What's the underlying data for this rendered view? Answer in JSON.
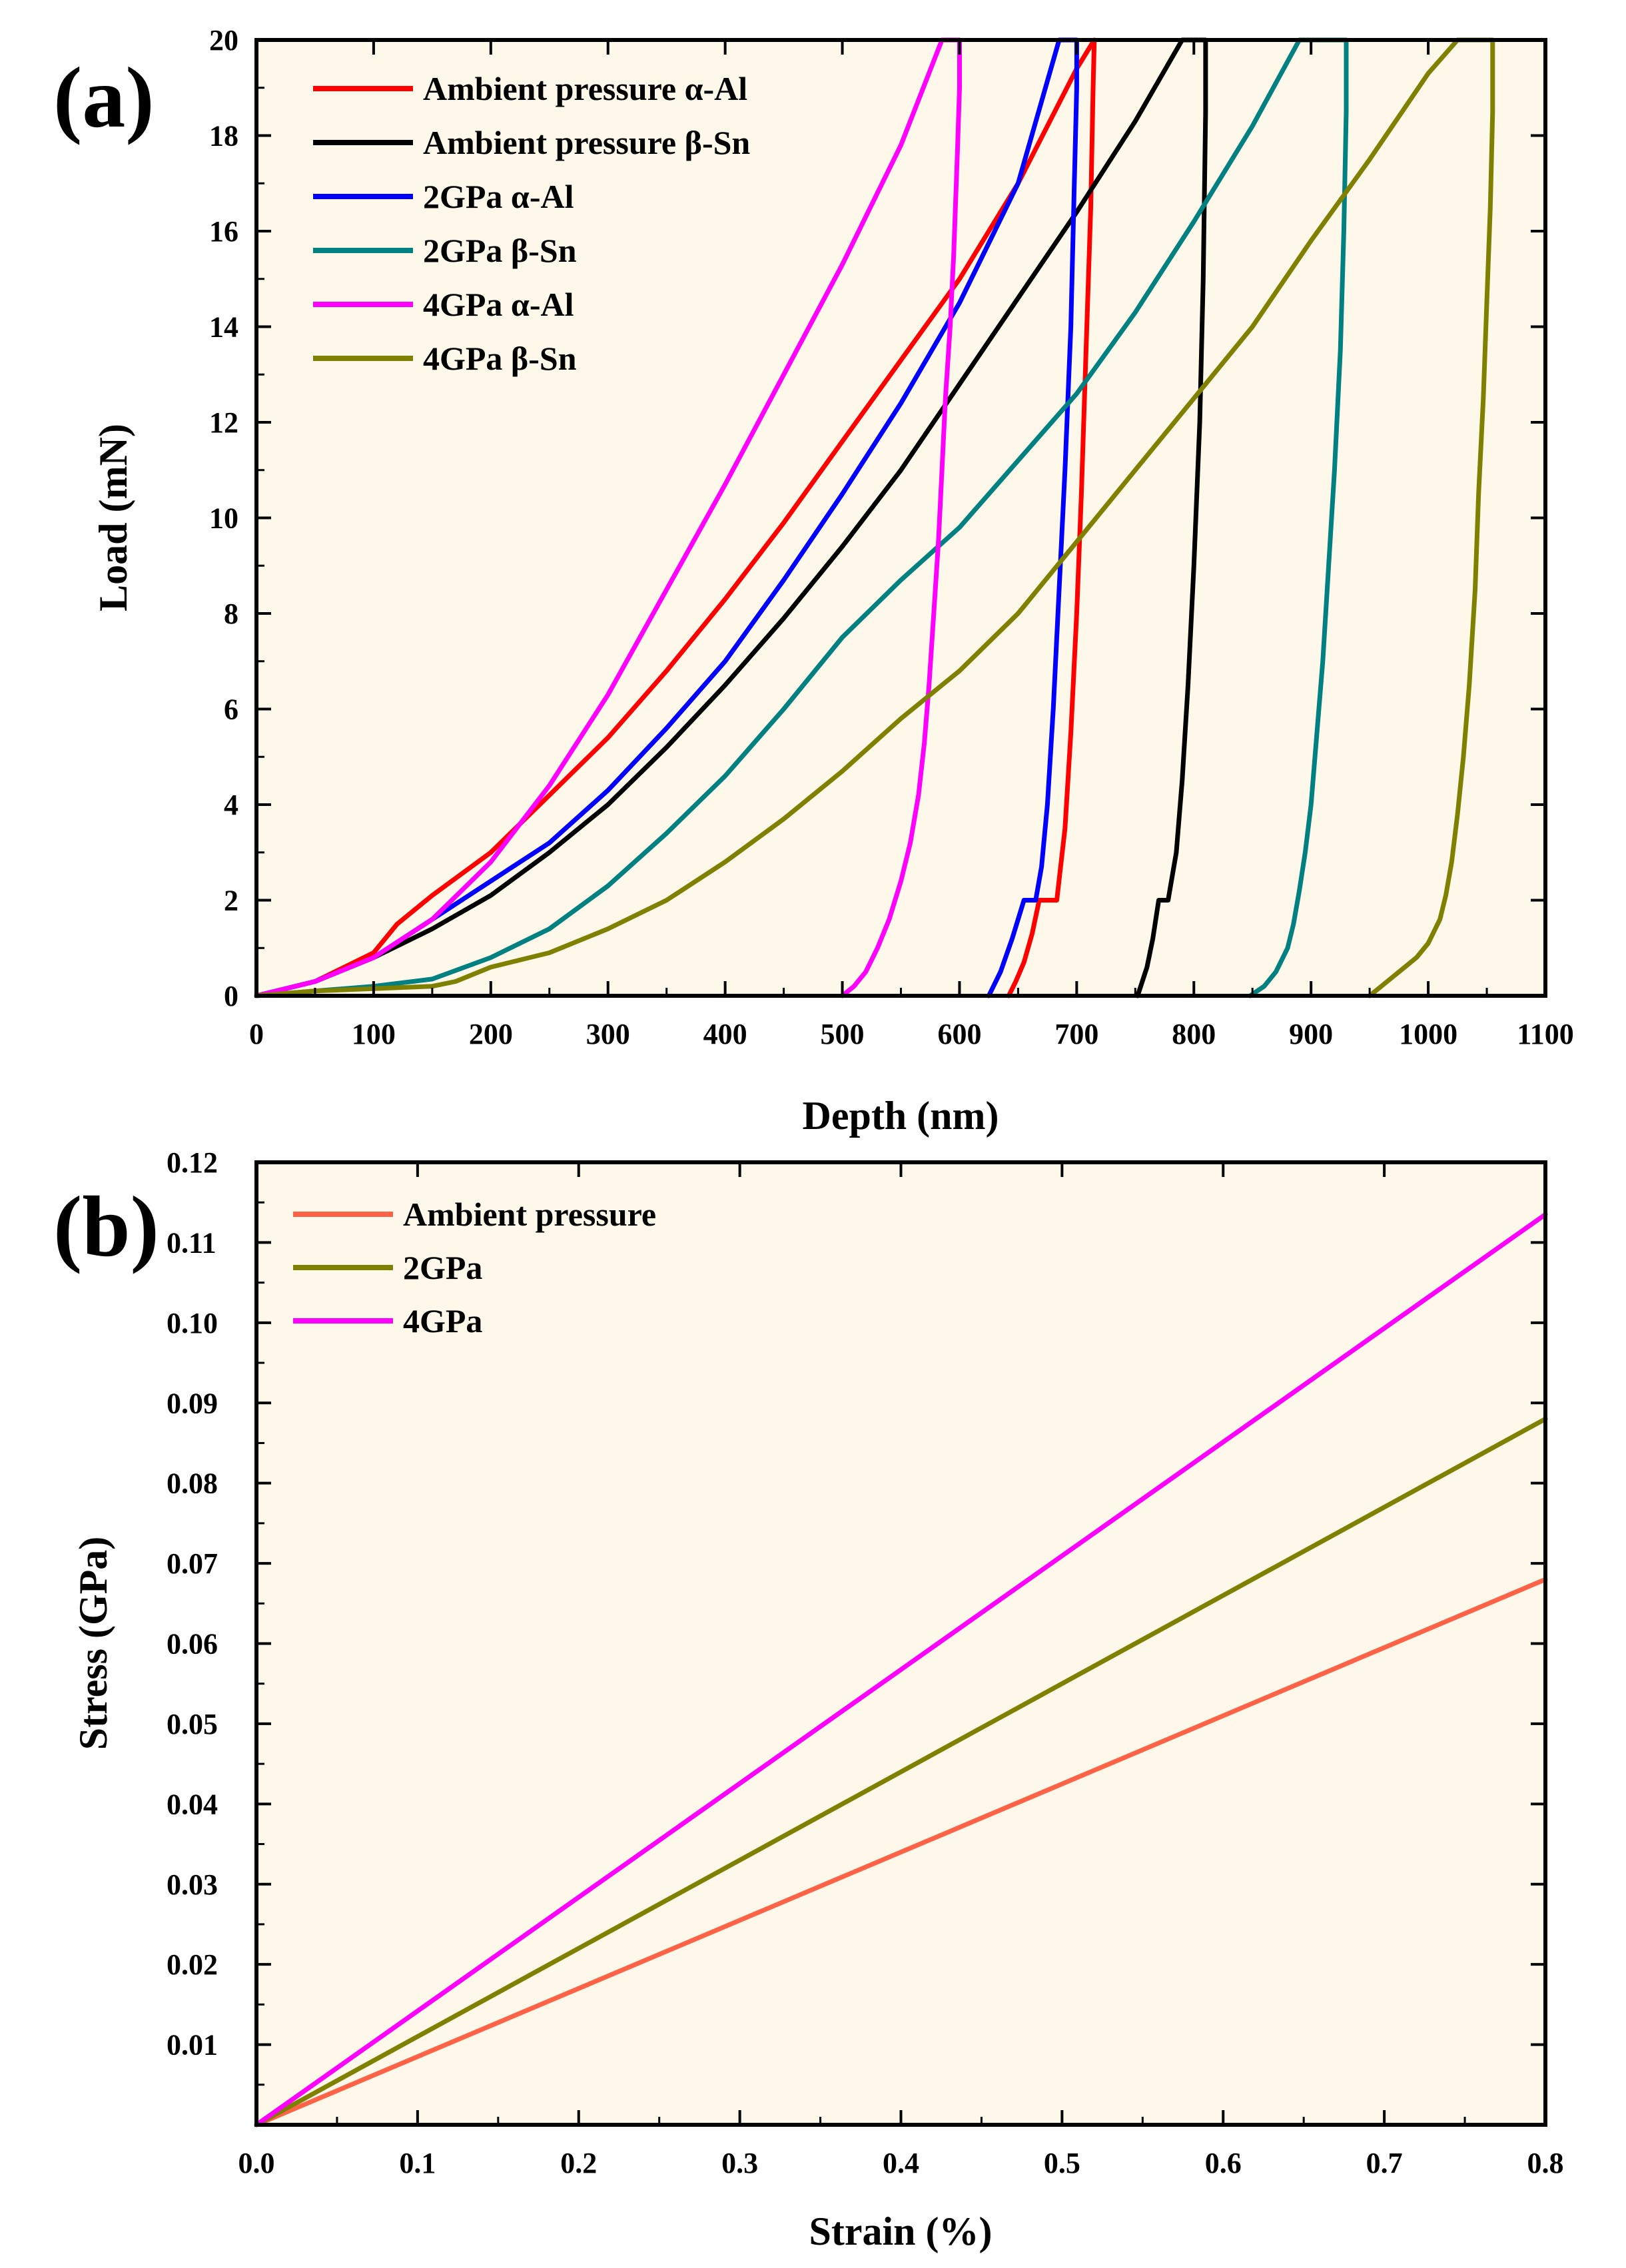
{
  "chart_data": [
    {
      "type": "line",
      "panel_label": "(a)",
      "title": "",
      "xlabel": "Depth (nm)",
      "ylabel": "Load (mN)",
      "xlim": [
        0,
        1100
      ],
      "ylim": [
        0,
        20
      ],
      "xticks": [
        0,
        100,
        200,
        300,
        400,
        500,
        600,
        700,
        800,
        900,
        1000,
        1100
      ],
      "yticks": [
        0,
        2,
        4,
        6,
        8,
        10,
        12,
        14,
        16,
        18,
        20
      ],
      "grid": false,
      "legend_position": "top-left",
      "series": [
        {
          "name": "Ambient pressure α-Al",
          "color": "#ff0000",
          "x": [
            0,
            50,
            100,
            120,
            150,
            200,
            250,
            300,
            350,
            400,
            450,
            500,
            550,
            600,
            650,
            700,
            715,
            715,
            714,
            712,
            708,
            704,
            700,
            695,
            690,
            683,
            675,
            668,
            662,
            655,
            648,
            642
          ],
          "y": [
            0,
            0.3,
            0.9,
            1.5,
            2.1,
            3.0,
            4.2,
            5.4,
            6.8,
            8.3,
            9.9,
            11.6,
            13.3,
            15.0,
            17.0,
            19.4,
            20,
            20,
            19.0,
            16.5,
            13.5,
            10.5,
            8.0,
            5.5,
            3.5,
            2.0,
            2.0,
            2.0,
            1.3,
            0.7,
            0.3,
            0
          ]
        },
        {
          "name": "Ambient pressure β-Sn",
          "color": "#000000",
          "x": [
            0,
            50,
            100,
            150,
            200,
            250,
            300,
            350,
            400,
            450,
            500,
            550,
            600,
            650,
            700,
            750,
            790,
            810,
            810,
            808,
            805,
            800,
            795,
            790,
            785,
            778,
            770,
            765,
            760,
            752
          ],
          "y": [
            0,
            0.3,
            0.8,
            1.4,
            2.1,
            3.0,
            4.0,
            5.2,
            6.5,
            7.9,
            9.4,
            11.0,
            12.8,
            14.6,
            16.4,
            18.3,
            20,
            20,
            18.5,
            15.0,
            12.0,
            9.0,
            6.5,
            4.5,
            3.0,
            2.0,
            2.0,
            1.2,
            0.6,
            0
          ]
        },
        {
          "name": "2GPa α-Al",
          "color": "#0000ff",
          "x": [
            0,
            50,
            100,
            150,
            200,
            250,
            300,
            350,
            400,
            450,
            500,
            550,
            600,
            650,
            685,
            700,
            700,
            698,
            695,
            690,
            685,
            680,
            675,
            670,
            665,
            655,
            645,
            635,
            625
          ],
          "y": [
            0,
            0.3,
            0.8,
            1.6,
            2.4,
            3.2,
            4.3,
            5.6,
            7.0,
            8.7,
            10.5,
            12.4,
            14.5,
            17.0,
            20,
            20,
            19.0,
            17.0,
            14.0,
            11.0,
            8.5,
            6.0,
            4.0,
            2.7,
            2.0,
            2.0,
            1.2,
            0.5,
            0
          ]
        },
        {
          "name": "2GPa β-Sn",
          "color": "#008080",
          "x": [
            0,
            50,
            100,
            150,
            200,
            250,
            300,
            350,
            400,
            450,
            500,
            550,
            600,
            650,
            700,
            750,
            800,
            850,
            890,
            930,
            930,
            928,
            925,
            920,
            915,
            910,
            905,
            900,
            895,
            890,
            885,
            880,
            870,
            860,
            848
          ],
          "y": [
            0,
            0.1,
            0.2,
            0.35,
            0.8,
            1.4,
            2.3,
            3.4,
            4.6,
            6.0,
            7.5,
            8.7,
            9.8,
            11.2,
            12.6,
            14.3,
            16.2,
            18.2,
            20,
            20,
            18.5,
            16.0,
            13.5,
            11.0,
            9.0,
            7.0,
            5.5,
            4.0,
            3.0,
            2.2,
            1.5,
            1.0,
            0.5,
            0.2,
            0
          ]
        },
        {
          "name": "4GPa α-Al",
          "color": "#ff00ff",
          "x": [
            0,
            50,
            100,
            150,
            200,
            250,
            300,
            350,
            400,
            450,
            500,
            550,
            585,
            600,
            600,
            598,
            595,
            592,
            588,
            585,
            582,
            578,
            574,
            570,
            565,
            558,
            550,
            540,
            530,
            520,
            510,
            500
          ],
          "y": [
            0,
            0.3,
            0.8,
            1.6,
            2.8,
            4.4,
            6.3,
            8.5,
            10.7,
            13.0,
            15.3,
            17.8,
            20,
            20,
            19.0,
            17.5,
            15.5,
            14.0,
            12.5,
            11.0,
            9.5,
            8.0,
            6.5,
            5.3,
            4.2,
            3.2,
            2.4,
            1.6,
            1.0,
            0.5,
            0.2,
            0
          ]
        },
        {
          "name": "4GPa β-Sn",
          "color": "#808000",
          "x": [
            0,
            50,
            100,
            150,
            170,
            200,
            250,
            300,
            350,
            400,
            450,
            500,
            550,
            600,
            650,
            700,
            750,
            800,
            850,
            900,
            950,
            1000,
            1025,
            1055,
            1055,
            1053,
            1050,
            1047,
            1043,
            1040,
            1035,
            1030,
            1025,
            1020,
            1015,
            1010,
            1000,
            990,
            980,
            970,
            960,
            950
          ],
          "y": [
            0,
            0.1,
            0.15,
            0.2,
            0.3,
            0.6,
            0.9,
            1.4,
            2.0,
            2.8,
            3.7,
            4.7,
            5.8,
            6.8,
            8.0,
            9.5,
            11.0,
            12.5,
            14.0,
            15.8,
            17.5,
            19.3,
            20,
            20,
            18.5,
            16.5,
            14.5,
            12.5,
            10.5,
            8.5,
            6.5,
            5.0,
            3.8,
            2.8,
            2.1,
            1.6,
            1.1,
            0.8,
            0.6,
            0.4,
            0.2,
            0
          ]
        }
      ]
    },
    {
      "type": "line",
      "panel_label": "(b)",
      "title": "",
      "xlabel": "Strain (%)",
      "ylabel": "Stress (GPa)",
      "xlim": [
        0,
        0.8
      ],
      "ylim": [
        0,
        0.12
      ],
      "xticks": [
        "0.0",
        "0.1",
        "0.2",
        "0.3",
        "0.4",
        "0.5",
        "0.6",
        "0.7",
        "0.8"
      ],
      "yticks": [
        "0.01",
        "0.02",
        "0.03",
        "0.04",
        "0.05",
        "0.06",
        "0.07",
        "0.08",
        "0.09",
        "0.10",
        "0.11",
        "0.12"
      ],
      "grid": false,
      "legend_position": "top-left",
      "series": [
        {
          "name": "Ambient pressure",
          "color": "#ff6347",
          "x": [
            0,
            0.8
          ],
          "y": [
            0,
            0.068
          ]
        },
        {
          "name": "2GPa",
          "color": "#808000",
          "x": [
            0,
            0.8
          ],
          "y": [
            0,
            0.088
          ]
        },
        {
          "name": "4GPa",
          "color": "#ff00ff",
          "x": [
            0,
            0.8
          ],
          "y": [
            0,
            0.1135
          ]
        }
      ]
    }
  ]
}
